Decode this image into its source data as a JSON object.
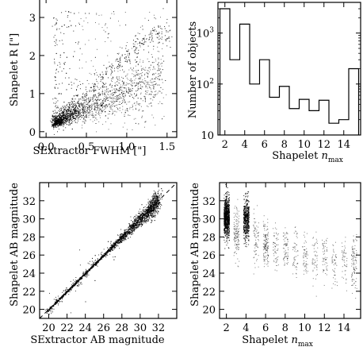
{
  "chart_data": [
    {
      "type": "scatter",
      "panel": "top-left",
      "xlabel": "SExtractor FWHM [\"]",
      "ylabel": "Shapelet R [\"]",
      "xlim": [
        -0.08,
        1.62
      ],
      "ylim": [
        -0.15,
        3.5
      ],
      "xticks": [
        0.0,
        0.5,
        1.0,
        1.5
      ],
      "xtick_labels": [
        "0.0",
        "0.5",
        "1.0",
        "1.5"
      ],
      "yticks": [
        0,
        1,
        2,
        3
      ],
      "ytick_labels": [
        "0",
        "1",
        "2",
        "3"
      ],
      "grid": false,
      "series": [
        {
          "x": [
            0.1,
            0.15,
            0.2,
            0.25,
            0.3,
            0.35,
            0.4,
            0.5,
            0.6,
            0.7,
            0.8,
            0.9,
            1.0,
            1.1,
            1.2,
            1.3,
            1.4,
            1.5
          ],
          "y": [
            0.2,
            0.3,
            0.4,
            0.5,
            0.6,
            0.7,
            0.8,
            1.0,
            1.2,
            1.4,
            1.6,
            1.8,
            2.0,
            2.2,
            2.4,
            2.5,
            2.6,
            2.6
          ]
        }
      ]
    },
    {
      "type": "bar",
      "panel": "top-right",
      "xlabel": "Shapelet n_max",
      "xlabel_main": "Shapelet ",
      "xlabel_var": "n",
      "xlabel_sub": "max",
      "ylabel": "Number of objects",
      "yscale": "log",
      "ylim": [
        10,
        4000
      ],
      "xlim": [
        1.3,
        15.7
      ],
      "categories": [
        2,
        3,
        4,
        5,
        6,
        7,
        8,
        9,
        10,
        11,
        12,
        13,
        14,
        15
      ],
      "values": [
        3000,
        300,
        1500,
        100,
        300,
        55,
        90,
        33,
        50,
        30,
        48,
        17,
        20,
        200
      ],
      "xticks": [
        2,
        4,
        6,
        8,
        10,
        12,
        14
      ],
      "xtick_labels": [
        "2",
        "4",
        "6",
        "8",
        "10",
        "12",
        "14"
      ],
      "yticks": [
        10,
        100,
        1000
      ],
      "ytick_labels": [
        {
          "base": "10",
          "exp": ""
        },
        {
          "base": "10",
          "exp": "2"
        },
        {
          "base": "10",
          "exp": "3"
        }
      ],
      "grid": false
    },
    {
      "type": "scatter",
      "panel": "bottom-left",
      "xlabel": "SExtractor AB magnitude",
      "ylabel": "Shapelet AB magnitude",
      "xlim": [
        19,
        34
      ],
      "ylim": [
        19,
        34
      ],
      "xticks": [
        20,
        22,
        24,
        26,
        28,
        30,
        32
      ],
      "xtick_labels": [
        "20",
        "22",
        "24",
        "26",
        "28",
        "30",
        "32"
      ],
      "yticks": [
        20,
        22,
        24,
        26,
        28,
        30,
        32
      ],
      "ytick_labels": [
        "20",
        "22",
        "24",
        "26",
        "28",
        "30",
        "32"
      ],
      "reference_line": {
        "x": [
          19,
          34
        ],
        "y": [
          19,
          34
        ],
        "style": "dashed"
      },
      "grid": false,
      "series": [
        {
          "x": [
            20,
            21,
            22,
            23,
            24,
            25,
            26,
            27,
            28,
            29,
            30,
            31
          ],
          "y": [
            20,
            21,
            22,
            23,
            24,
            25,
            26,
            27,
            28,
            29,
            30,
            31
          ]
        }
      ]
    },
    {
      "type": "scatter",
      "panel": "bottom-right",
      "xlabel": "Shapelet n_max",
      "xlabel_main": "Shapelet ",
      "xlabel_var": "n",
      "xlabel_sub": "max",
      "ylabel": "Shapelet AB magnitude",
      "xlim": [
        1.3,
        15.7
      ],
      "ylim": [
        19,
        34
      ],
      "xticks": [
        2,
        4,
        6,
        8,
        10,
        12,
        14
      ],
      "xtick_labels": [
        "2",
        "4",
        "6",
        "8",
        "10",
        "12",
        "14"
      ],
      "yticks": [
        20,
        22,
        24,
        26,
        28,
        30,
        32
      ],
      "ytick_labels": [
        "20",
        "22",
        "24",
        "26",
        "28",
        "30",
        "32"
      ],
      "grid": false,
      "series": [
        {
          "x": [
            2,
            3,
            4,
            5,
            6,
            7,
            8,
            9,
            10,
            11,
            12,
            13,
            14,
            15
          ],
          "y_center": [
            30.2,
            28.3,
            30.0,
            27.8,
            27.3,
            26.7,
            26.6,
            26.3,
            26.1,
            25.9,
            25.6,
            25.4,
            25.3,
            25.0
          ]
        }
      ]
    }
  ]
}
